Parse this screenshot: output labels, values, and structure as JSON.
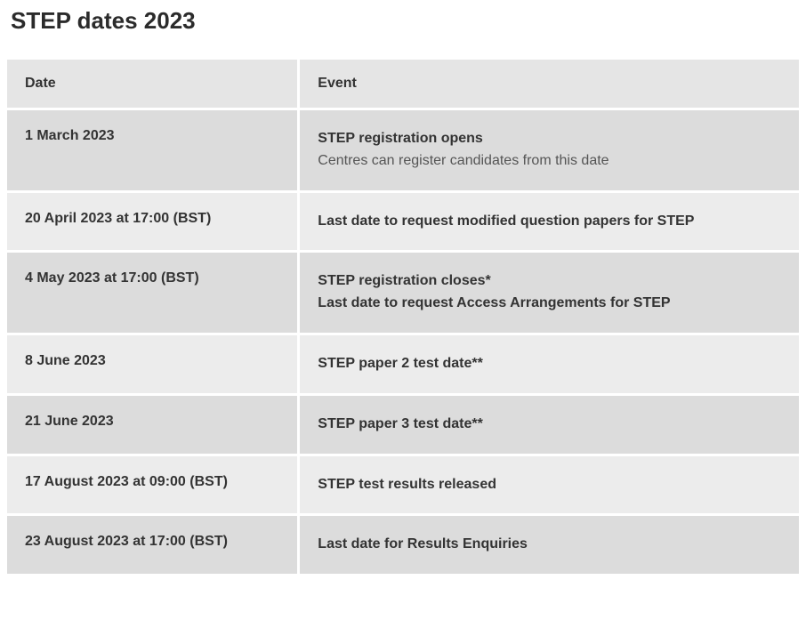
{
  "title": "STEP dates 2023",
  "columns": [
    "Date",
    "Event"
  ],
  "rows": [
    {
      "date": "1 March 2023",
      "events": [
        {
          "text": "STEP registration opens",
          "bold": true
        },
        {
          "text": "Centres can register candidates from this date",
          "bold": false
        }
      ]
    },
    {
      "date": "20 April 2023 at 17:00 (BST)",
      "events": [
        {
          "text": "Last date to request modified question papers for STEP",
          "bold": true
        }
      ]
    },
    {
      "date": "4 May 2023 at 17:00 (BST)",
      "events": [
        {
          "text": "STEP registration closes*",
          "bold": true
        },
        {
          "text": "Last date to request Access Arrangements for STEP",
          "bold": true
        }
      ]
    },
    {
      "date": "8 June 2023",
      "events": [
        {
          "text": "STEP paper 2 test date**",
          "bold": true
        }
      ]
    },
    {
      "date": "21 June 2023",
      "events": [
        {
          "text": "STEP paper 3 test date**",
          "bold": true
        }
      ]
    },
    {
      "date": "17 August 2023 at 09:00 (BST)",
      "events": [
        {
          "text": "STEP test results released",
          "bold": true
        }
      ]
    },
    {
      "date": "23 August 2023 at 17:00 (BST)",
      "events": [
        {
          "text": "Last date for Results Enquiries",
          "bold": true
        }
      ]
    }
  ]
}
